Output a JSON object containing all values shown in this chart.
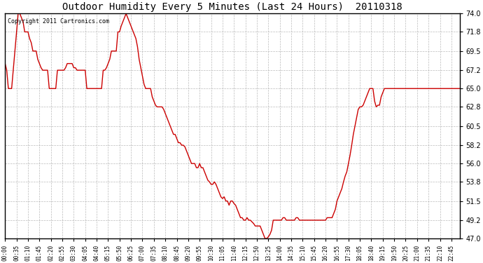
{
  "title": "Outdoor Humidity Every 5 Minutes (Last 24 Hours)  20110318",
  "copyright": "Copyright 2011 Cartronics.com",
  "line_color": "#cc0000",
  "background_color": "#ffffff",
  "grid_color": "#aaaaaa",
  "ylim": [
    47.0,
    74.0
  ],
  "yticks": [
    47.0,
    49.2,
    51.5,
    53.8,
    56.0,
    58.2,
    60.5,
    62.8,
    65.0,
    67.2,
    69.5,
    71.8,
    74.0
  ],
  "humidity_data": [
    68.0,
    67.2,
    65.0,
    65.0,
    65.0,
    67.2,
    69.5,
    71.8,
    74.0,
    74.0,
    73.5,
    73.0,
    71.8,
    71.8,
    71.8,
    71.0,
    70.5,
    69.5,
    69.5,
    69.5,
    68.5,
    68.0,
    67.5,
    67.2,
    67.2,
    67.2,
    67.2,
    65.0,
    65.0,
    65.0,
    65.0,
    65.0,
    67.2,
    67.2,
    67.2,
    67.2,
    67.2,
    67.5,
    68.0,
    68.0,
    68.0,
    68.0,
    67.5,
    67.5,
    67.2,
    67.2,
    67.2,
    67.2,
    67.2,
    67.2,
    65.0,
    65.0,
    65.0,
    65.0,
    65.0,
    65.0,
    65.0,
    65.0,
    65.0,
    65.0,
    67.2,
    67.2,
    67.5,
    68.0,
    68.5,
    69.5,
    69.5,
    69.5,
    69.5,
    71.8,
    71.8,
    72.5,
    73.0,
    73.5,
    74.0,
    73.5,
    73.0,
    72.5,
    72.0,
    71.5,
    71.0,
    70.0,
    68.5,
    67.5,
    66.5,
    65.5,
    65.0,
    65.0,
    65.0,
    65.0,
    64.0,
    63.5,
    63.0,
    62.8,
    62.8,
    62.8,
    62.8,
    62.5,
    62.0,
    61.5,
    61.0,
    60.5,
    60.0,
    59.5,
    59.5,
    59.0,
    58.5,
    58.5,
    58.2,
    58.2,
    58.0,
    57.5,
    57.0,
    56.5,
    56.0,
    56.0,
    56.0,
    55.5,
    55.5,
    56.0,
    55.5,
    55.5,
    55.0,
    54.5,
    54.0,
    53.8,
    53.5,
    53.5,
    53.8,
    53.5,
    53.0,
    52.5,
    52.0,
    51.8,
    52.0,
    51.5,
    51.5,
    51.0,
    51.5,
    51.5,
    51.2,
    51.0,
    50.5,
    50.0,
    49.5,
    49.5,
    49.2,
    49.2,
    49.5,
    49.2,
    49.2,
    49.0,
    48.8,
    48.5,
    48.5,
    48.5,
    48.5,
    48.0,
    47.5,
    47.0,
    47.0,
    47.2,
    47.5,
    48.0,
    49.2,
    49.2,
    49.2,
    49.2,
    49.2,
    49.2,
    49.5,
    49.5,
    49.2,
    49.2,
    49.2,
    49.2,
    49.2,
    49.2,
    49.5,
    49.5,
    49.2,
    49.2,
    49.2,
    49.2,
    49.2,
    49.2,
    49.2,
    49.2,
    49.2,
    49.2,
    49.2,
    49.2,
    49.2,
    49.2,
    49.2,
    49.2,
    49.2,
    49.5,
    49.5,
    49.5,
    49.5,
    50.0,
    50.5,
    51.5,
    52.0,
    52.5,
    53.0,
    53.8,
    54.5,
    55.0,
    56.0,
    57.0,
    58.2,
    59.5,
    60.5,
    61.5,
    62.5,
    62.8,
    62.8,
    63.0,
    63.5,
    64.0,
    64.5,
    65.0,
    65.0,
    65.0,
    63.5,
    62.8,
    63.0,
    63.0,
    64.0,
    64.5,
    65.0,
    65.0,
    65.0,
    65.0,
    65.0,
    65.0,
    65.0,
    65.0,
    65.0,
    65.0,
    65.0,
    65.0,
    65.0,
    65.0,
    65.0,
    65.0,
    65.0,
    65.0,
    65.0,
    65.0,
    65.0,
    65.0,
    65.0,
    65.0,
    65.0,
    65.0,
    65.0,
    65.0,
    65.0,
    65.0,
    65.0,
    65.0,
    65.0,
    65.0,
    65.0,
    65.0,
    65.0,
    65.0,
    65.0,
    65.0,
    65.0,
    65.0,
    65.0,
    65.0,
    65.0,
    65.0,
    65.0
  ]
}
